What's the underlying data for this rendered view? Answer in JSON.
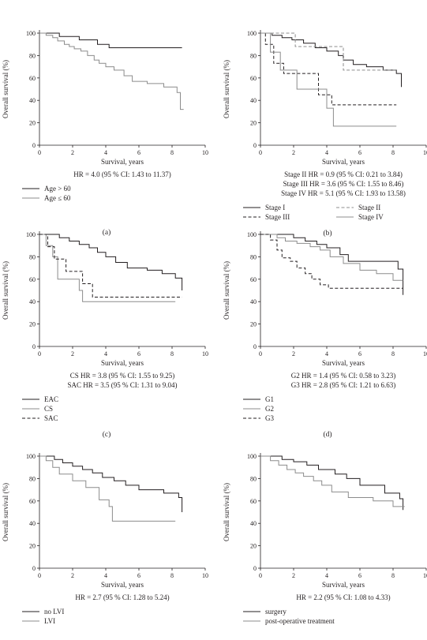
{
  "chart_data": [
    {
      "type": "line",
      "panel": "a",
      "caption": "(a)",
      "xlabel": "Survival, years",
      "ylabel": "Overall survival (%)",
      "xlim": [
        0,
        10
      ],
      "ylim": [
        0,
        100
      ],
      "xticks": [
        "0",
        "2",
        "4",
        "6",
        "8",
        "10"
      ],
      "yticks": [
        "0",
        "20",
        "40",
        "60",
        "80",
        "100"
      ],
      "hr_lines": [
        "HR = 4.0 (95 % CI: 1.43 to 11.37)"
      ],
      "series": [
        {
          "name": "Age > 60",
          "color": "#231f20",
          "dash": "",
          "x": [
            0,
            1.2,
            2.4,
            3.5,
            4.2,
            8.6
          ],
          "y": [
            100,
            97,
            94,
            90,
            87,
            87
          ]
        },
        {
          "name": "Age ≤ 60",
          "color": "#8c8c8c",
          "dash": "",
          "x": [
            0,
            0.4,
            0.8,
            1.1,
            1.5,
            1.8,
            2.1,
            2.5,
            2.9,
            3.3,
            3.6,
            4.0,
            4.5,
            5.1,
            5.6,
            6.5,
            7.5,
            8.3,
            8.5,
            8.7
          ],
          "y": [
            100,
            98,
            96,
            93,
            90,
            88,
            86,
            84,
            80,
            76,
            73,
            70,
            67,
            62,
            57,
            55,
            52,
            47,
            32,
            32
          ]
        }
      ]
    },
    {
      "type": "line",
      "panel": "b",
      "caption": "(b)",
      "xlabel": "Survival, years",
      "ylabel": "Overall survival (%)",
      "xlim": [
        0,
        10
      ],
      "ylim": [
        0,
        100
      ],
      "xticks": [
        "0",
        "2",
        "4",
        "6",
        "8",
        "10"
      ],
      "yticks": [
        "0",
        "20",
        "40",
        "60",
        "80",
        "100"
      ],
      "hr_lines": [
        "Stage II HR = 0.9 (95 % CI: 0.21 to 3.84)",
        "Stage III HR = 3.6 (95 % CI: 1.55 to 8.46)",
        "Stage IV HR = 5.1 (95 % CI: 1.93 to 13.58)"
      ],
      "series": [
        {
          "name": "Stage I",
          "color": "#231f20",
          "dash": "",
          "x": [
            0,
            0.7,
            1.3,
            1.9,
            2.6,
            3.3,
            4.0,
            4.7,
            5.0,
            5.6,
            6.4,
            7.4,
            8.2,
            8.5
          ],
          "y": [
            100,
            98,
            96,
            94,
            91,
            87,
            84,
            80,
            76,
            72,
            70,
            67,
            64,
            52
          ]
        },
        {
          "name": "Stage II",
          "color": "#8c8c8c",
          "dash": "4,2.5",
          "x": [
            0,
            1.4,
            2.1,
            5.0,
            8.2
          ],
          "y": [
            100,
            100,
            88,
            67,
            67
          ]
        },
        {
          "name": "Stage III",
          "color": "#231f20",
          "dash": "4,2.5",
          "x": [
            0,
            0.3,
            0.8,
            1.4,
            3.5,
            4.3,
            8.2
          ],
          "y": [
            100,
            90,
            73,
            64,
            45,
            36,
            36
          ]
        },
        {
          "name": "Stage IV",
          "color": "#8c8c8c",
          "dash": "",
          "x": [
            0,
            0.6,
            1.2,
            2.2,
            4.0,
            4.4,
            8.2
          ],
          "y": [
            100,
            83,
            67,
            50,
            33,
            17,
            17
          ]
        }
      ]
    },
    {
      "type": "line",
      "panel": "c",
      "caption": "(c)",
      "xlabel": "Survival, years",
      "ylabel": "Overall survival (%)",
      "xlim": [
        0,
        10
      ],
      "ylim": [
        0,
        100
      ],
      "xticks": [
        "0",
        "2",
        "4",
        "6",
        "8",
        "10"
      ],
      "yticks": [
        "0",
        "20",
        "40",
        "60",
        "80",
        "100"
      ],
      "hr_lines": [
        "CS HR = 3.8 (95 % CI: 1.55 to 9.25)",
        "SAC HR = 3.5 (95 % CI: 1.31 to 9.04)"
      ],
      "series": [
        {
          "name": "EAC",
          "color": "#231f20",
          "dash": "",
          "x": [
            0,
            1.2,
            1.8,
            2.4,
            3.0,
            3.5,
            4.0,
            4.6,
            5.3,
            6.5,
            7.4,
            8.2,
            8.6
          ],
          "y": [
            100,
            97,
            94,
            91,
            88,
            84,
            80,
            75,
            70,
            68,
            65,
            61,
            50
          ]
        },
        {
          "name": "CS",
          "color": "#8c8c8c",
          "dash": "",
          "x": [
            0,
            0.4,
            0.8,
            1.1,
            2.4,
            2.6,
            8.2
          ],
          "y": [
            100,
            90,
            80,
            60,
            50,
            40,
            40
          ]
        },
        {
          "name": "SAC",
          "color": "#231f20",
          "dash": "4,2.5",
          "x": [
            0,
            0.5,
            0.9,
            1.6,
            2.6,
            3.2,
            8.6
          ],
          "y": [
            100,
            89,
            78,
            67,
            56,
            44,
            44
          ]
        }
      ]
    },
    {
      "type": "line",
      "panel": "d",
      "caption": "(d)",
      "xlabel": "Survival, years",
      "ylabel": "Overall survival (%)",
      "xlim": [
        0,
        10
      ],
      "ylim": [
        0,
        100
      ],
      "xticks": [
        "0",
        "2",
        "4",
        "6",
        "8",
        "10"
      ],
      "yticks": [
        "0",
        "20",
        "40",
        "60",
        "80",
        "100"
      ],
      "hr_lines": [
        "G2 HR = 1.4 (95 % CI: 0.58 to 3.23)",
        "G3 HR = 2.8 (95 % CI: 1.21 to 6.63)"
      ],
      "series": [
        {
          "name": "G1",
          "color": "#231f20",
          "dash": "",
          "x": [
            0,
            2.0,
            2.7,
            3.4,
            4.0,
            4.8,
            5.3,
            8.3,
            8.6
          ],
          "y": [
            100,
            97,
            94,
            91,
            88,
            82,
            76,
            69,
            46
          ]
        },
        {
          "name": "G2",
          "color": "#8c8c8c",
          "dash": "",
          "x": [
            0,
            1.0,
            1.5,
            2.2,
            3.0,
            3.6,
            4.2,
            5.0,
            6.0,
            7.0,
            8.0,
            8.6
          ],
          "y": [
            100,
            97,
            94,
            92,
            89,
            86,
            80,
            74,
            68,
            65,
            59,
            59
          ]
        },
        {
          "name": "G3",
          "color": "#231f20",
          "dash": "4,2.5",
          "x": [
            0,
            0.6,
            1.0,
            1.3,
            1.8,
            2.2,
            2.7,
            3.1,
            3.6,
            4.1,
            8.6
          ],
          "y": [
            100,
            95,
            86,
            79,
            76,
            70,
            65,
            60,
            55,
            52,
            52
          ]
        }
      ]
    },
    {
      "type": "line",
      "panel": "e",
      "caption": "(e)",
      "xlabel": "Survival, years",
      "ylabel": "Overall survival (%)",
      "xlim": [
        0,
        10
      ],
      "ylim": [
        0,
        100
      ],
      "xticks": [
        "0",
        "2",
        "4",
        "6",
        "8",
        "10"
      ],
      "yticks": [
        "0",
        "20",
        "40",
        "60",
        "80",
        "100"
      ],
      "hr_lines": [
        "HR = 2.7 (95 % CI: 1.28 to 5.24)"
      ],
      "series": [
        {
          "name": "no LVI",
          "color": "#231f20",
          "dash": "",
          "x": [
            0,
            0.9,
            1.4,
            2.0,
            2.6,
            3.2,
            3.8,
            4.5,
            5.2,
            6.0,
            7.5,
            8.4,
            8.6
          ],
          "y": [
            100,
            97,
            94,
            91,
            88,
            85,
            81,
            78,
            74,
            70,
            67,
            63,
            50
          ]
        },
        {
          "name": "LVI",
          "color": "#8c8c8c",
          "dash": "",
          "x": [
            0,
            0.4,
            0.8,
            1.2,
            2.0,
            2.8,
            3.6,
            4.2,
            4.4,
            8.2
          ],
          "y": [
            100,
            96,
            90,
            84,
            78,
            72,
            61,
            55,
            42,
            42
          ]
        }
      ]
    },
    {
      "type": "line",
      "panel": "f",
      "caption": "(f)",
      "xlabel": "Survival, years",
      "ylabel": "Overall survival (%)",
      "xlim": [
        0,
        10
      ],
      "ylim": [
        0,
        100
      ],
      "xticks": [
        "0",
        "2",
        "4",
        "6",
        "8",
        "10"
      ],
      "yticks": [
        "0",
        "20",
        "40",
        "60",
        "80",
        "100"
      ],
      "hr_lines": [
        "HR = 2.2 (95 % CI: 1.08 to 4.33)"
      ],
      "series": [
        {
          "name": "surgery",
          "color": "#231f20",
          "dash": "",
          "x": [
            0,
            1.3,
            2.0,
            2.8,
            3.5,
            4.5,
            5.2,
            6.0,
            7.5,
            8.4,
            8.6
          ],
          "y": [
            100,
            97,
            95,
            92,
            88,
            84,
            80,
            74,
            67,
            62,
            52
          ]
        },
        {
          "name": "post-operative treatment",
          "color": "#8c8c8c",
          "dash": "",
          "x": [
            0,
            0.6,
            1.1,
            1.6,
            2.1,
            2.6,
            3.2,
            3.7,
            4.3,
            5.3,
            6.8,
            8.0,
            8.7
          ],
          "y": [
            100,
            96,
            92,
            88,
            85,
            82,
            78,
            74,
            68,
            63,
            60,
            55,
            55
          ]
        }
      ]
    }
  ]
}
